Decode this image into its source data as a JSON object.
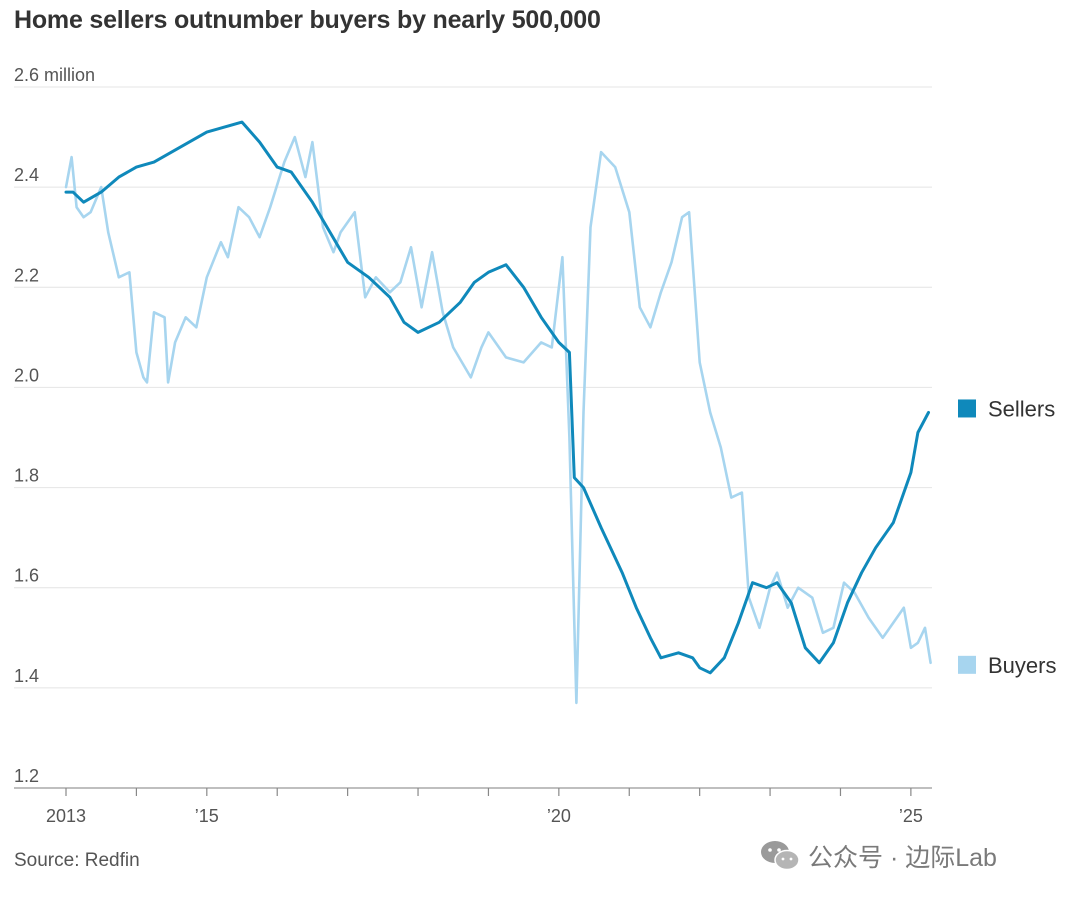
{
  "chart_data": {
    "type": "line",
    "title": "Home sellers outnumber buyers by nearly 500,000",
    "source": "Source: Redfin",
    "y_unit_label": "2.6 million",
    "ylim": [
      1.2,
      2.6
    ],
    "y_ticks": [
      1.2,
      1.4,
      1.6,
      1.8,
      2.0,
      2.2,
      2.4
    ],
    "y_tick_labels": [
      "1.2",
      "1.4",
      "1.6",
      "1.8",
      "2.0",
      "2.2",
      "2.4"
    ],
    "xlim": [
      2013.0,
      2025.3
    ],
    "x_ticks": [
      2013,
      2014,
      2015,
      2016,
      2017,
      2018,
      2019,
      2020,
      2021,
      2022,
      2023,
      2024,
      2025
    ],
    "x_tick_labels": [
      {
        "x": 2013,
        "label": "2013"
      },
      {
        "x": 2015,
        "label": "’15"
      },
      {
        "x": 2020,
        "label": "’20"
      },
      {
        "x": 2025,
        "label": "’25"
      }
    ],
    "grid": true,
    "legend": "right, at line ends",
    "series": [
      {
        "name": "Sellers",
        "color": "#0f89bb",
        "points": [
          [
            2013.0,
            2.39
          ],
          [
            2013.1,
            2.39
          ],
          [
            2013.25,
            2.37
          ],
          [
            2013.5,
            2.39
          ],
          [
            2013.75,
            2.42
          ],
          [
            2014.0,
            2.44
          ],
          [
            2014.25,
            2.45
          ],
          [
            2014.5,
            2.47
          ],
          [
            2014.75,
            2.49
          ],
          [
            2015.0,
            2.51
          ],
          [
            2015.25,
            2.52
          ],
          [
            2015.5,
            2.53
          ],
          [
            2015.75,
            2.49
          ],
          [
            2016.0,
            2.44
          ],
          [
            2016.2,
            2.43
          ],
          [
            2016.5,
            2.37
          ],
          [
            2016.75,
            2.31
          ],
          [
            2017.0,
            2.25
          ],
          [
            2017.3,
            2.22
          ],
          [
            2017.6,
            2.18
          ],
          [
            2017.8,
            2.13
          ],
          [
            2018.0,
            2.11
          ],
          [
            2018.3,
            2.13
          ],
          [
            2018.6,
            2.17
          ],
          [
            2018.8,
            2.21
          ],
          [
            2019.0,
            2.23
          ],
          [
            2019.25,
            2.245
          ],
          [
            2019.5,
            2.2
          ],
          [
            2019.75,
            2.14
          ],
          [
            2020.0,
            2.09
          ],
          [
            2020.15,
            2.07
          ],
          [
            2020.22,
            1.82
          ],
          [
            2020.35,
            1.8
          ],
          [
            2020.6,
            1.72
          ],
          [
            2020.9,
            1.63
          ],
          [
            2021.1,
            1.56
          ],
          [
            2021.3,
            1.5
          ],
          [
            2021.45,
            1.46
          ],
          [
            2021.7,
            1.47
          ],
          [
            2021.9,
            1.46
          ],
          [
            2022.0,
            1.44
          ],
          [
            2022.15,
            1.43
          ],
          [
            2022.35,
            1.46
          ],
          [
            2022.55,
            1.53
          ],
          [
            2022.75,
            1.61
          ],
          [
            2022.95,
            1.6
          ],
          [
            2023.1,
            1.61
          ],
          [
            2023.3,
            1.57
          ],
          [
            2023.5,
            1.48
          ],
          [
            2023.7,
            1.45
          ],
          [
            2023.9,
            1.49
          ],
          [
            2024.1,
            1.57
          ],
          [
            2024.3,
            1.63
          ],
          [
            2024.5,
            1.68
          ],
          [
            2024.75,
            1.73
          ],
          [
            2025.0,
            1.83
          ],
          [
            2025.1,
            1.91
          ],
          [
            2025.25,
            1.95
          ]
        ]
      },
      {
        "name": "Buyers",
        "color": "#a7d5ef",
        "points": [
          [
            2013.0,
            2.4
          ],
          [
            2013.08,
            2.46
          ],
          [
            2013.15,
            2.36
          ],
          [
            2013.25,
            2.34
          ],
          [
            2013.35,
            2.35
          ],
          [
            2013.5,
            2.4
          ],
          [
            2013.6,
            2.31
          ],
          [
            2013.75,
            2.22
          ],
          [
            2013.9,
            2.23
          ],
          [
            2014.0,
            2.07
          ],
          [
            2014.1,
            2.02
          ],
          [
            2014.15,
            2.01
          ],
          [
            2014.25,
            2.15
          ],
          [
            2014.4,
            2.14
          ],
          [
            2014.45,
            2.01
          ],
          [
            2014.55,
            2.09
          ],
          [
            2014.7,
            2.14
          ],
          [
            2014.85,
            2.12
          ],
          [
            2015.0,
            2.22
          ],
          [
            2015.2,
            2.29
          ],
          [
            2015.3,
            2.26
          ],
          [
            2015.45,
            2.36
          ],
          [
            2015.6,
            2.34
          ],
          [
            2015.75,
            2.3
          ],
          [
            2015.9,
            2.36
          ],
          [
            2016.1,
            2.45
          ],
          [
            2016.25,
            2.5
          ],
          [
            2016.4,
            2.42
          ],
          [
            2016.5,
            2.49
          ],
          [
            2016.65,
            2.32
          ],
          [
            2016.8,
            2.27
          ],
          [
            2016.9,
            2.31
          ],
          [
            2017.1,
            2.35
          ],
          [
            2017.25,
            2.18
          ],
          [
            2017.4,
            2.22
          ],
          [
            2017.6,
            2.19
          ],
          [
            2017.75,
            2.21
          ],
          [
            2017.9,
            2.28
          ],
          [
            2018.05,
            2.16
          ],
          [
            2018.2,
            2.27
          ],
          [
            2018.35,
            2.15
          ],
          [
            2018.5,
            2.08
          ],
          [
            2018.75,
            2.02
          ],
          [
            2018.9,
            2.08
          ],
          [
            2019.0,
            2.11
          ],
          [
            2019.25,
            2.06
          ],
          [
            2019.5,
            2.05
          ],
          [
            2019.75,
            2.09
          ],
          [
            2019.9,
            2.08
          ],
          [
            2020.05,
            2.26
          ],
          [
            2020.15,
            1.9
          ],
          [
            2020.25,
            1.37
          ],
          [
            2020.35,
            1.95
          ],
          [
            2020.45,
            2.32
          ],
          [
            2020.6,
            2.47
          ],
          [
            2020.8,
            2.44
          ],
          [
            2021.0,
            2.35
          ],
          [
            2021.15,
            2.16
          ],
          [
            2021.3,
            2.12
          ],
          [
            2021.45,
            2.19
          ],
          [
            2021.6,
            2.25
          ],
          [
            2021.75,
            2.34
          ],
          [
            2021.85,
            2.35
          ],
          [
            2022.0,
            2.05
          ],
          [
            2022.15,
            1.95
          ],
          [
            2022.3,
            1.88
          ],
          [
            2022.45,
            1.78
          ],
          [
            2022.6,
            1.79
          ],
          [
            2022.7,
            1.58
          ],
          [
            2022.85,
            1.52
          ],
          [
            2023.0,
            1.6
          ],
          [
            2023.1,
            1.63
          ],
          [
            2023.25,
            1.56
          ],
          [
            2023.4,
            1.6
          ],
          [
            2023.6,
            1.58
          ],
          [
            2023.75,
            1.51
          ],
          [
            2023.9,
            1.52
          ],
          [
            2024.05,
            1.61
          ],
          [
            2024.2,
            1.59
          ],
          [
            2024.4,
            1.54
          ],
          [
            2024.6,
            1.5
          ],
          [
            2024.75,
            1.53
          ],
          [
            2024.9,
            1.56
          ],
          [
            2025.0,
            1.48
          ],
          [
            2025.1,
            1.49
          ],
          [
            2025.2,
            1.52
          ],
          [
            2025.28,
            1.45
          ]
        ]
      }
    ]
  },
  "watermark": {
    "text": "公众号 · 边际Lab",
    "icon": "wechat-icon"
  }
}
